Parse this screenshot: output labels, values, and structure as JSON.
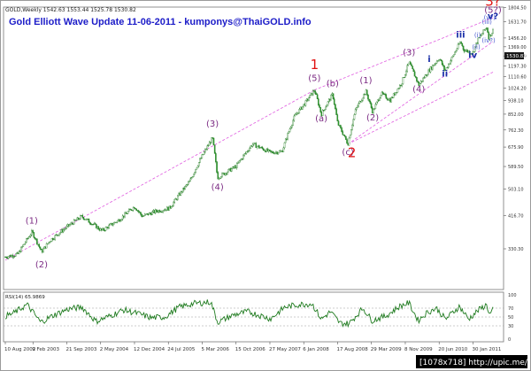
{
  "chart_data": [
    {
      "type": "line",
      "title": "Gold Elliott Wave Update 11-06-2011 - kumponys@ThaiGOLD.info",
      "header": "GOLD,Weekly  1542.63 1553.44 1525.78 1530.82",
      "current_price_label": "1530.82",
      "y_scale": "log",
      "ylim": [
        248,
        1810
      ],
      "y_ticks": [
        "1804.50",
        "1631.70",
        "1456.20",
        "1369.00",
        "1283.40",
        "1197.30",
        "1110.60",
        "1024.20",
        "938.10",
        "852.00",
        "762.30",
        "675.90",
        "589.50",
        "503.10",
        "416.70",
        "330.30",
        "243.90"
      ],
      "x_ticks": [
        "10 Aug 2002",
        "9 Feb 2003",
        "21 Sep 2003",
        "2 May 2004",
        "12 Dec 2004",
        "24 Jul 2005",
        "5 Mar 2006",
        "15 Oct 2006",
        "27 May 2007",
        "6 Jan 2008",
        "17 Aug 2008",
        "29 Mar 2009",
        "8 Nov 2009",
        "20 Jun 2010",
        "30 Jan 2011"
      ],
      "x_start": "2002-08-10",
      "x_end": "2011-06-11",
      "series": [
        {
          "values": [
            [
              "2002-08-10",
              312
            ],
            [
              "2002-11-01",
              318
            ],
            [
              "2003-02-03",
              372
            ],
            [
              "2003-04-07",
              323
            ],
            [
              "2003-06-01",
              350
            ],
            [
              "2003-09-21",
              385
            ],
            [
              "2003-12-29",
              415
            ],
            [
              "2004-05-10",
              375
            ],
            [
              "2004-09-01",
              405
            ],
            [
              "2004-12-12",
              445
            ],
            [
              "2005-02-01",
              415
            ],
            [
              "2005-05-01",
              430
            ],
            [
              "2005-08-01",
              440
            ],
            [
              "2005-12-12",
              530
            ],
            [
              "2006-05-12",
              720
            ],
            [
              "2006-06-14",
              545
            ],
            [
              "2006-10-15",
              590
            ],
            [
              "2007-02-01",
              690
            ],
            [
              "2007-06-01",
              650
            ],
            [
              "2007-08-15",
              655
            ],
            [
              "2007-11-07",
              840
            ],
            [
              "2008-01-15",
              920
            ],
            [
              "2008-03-17",
              1010
            ],
            [
              "2008-05-01",
              850
            ],
            [
              "2008-07-15",
              980
            ],
            [
              "2008-08-17",
              800
            ],
            [
              "2008-10-24",
              690
            ],
            [
              "2008-12-15",
              880
            ],
            [
              "2009-02-20",
              1000
            ],
            [
              "2009-04-06",
              865
            ],
            [
              "2009-06-01",
              985
            ],
            [
              "2009-08-01",
              940
            ],
            [
              "2009-10-15",
              1060
            ],
            [
              "2009-12-03",
              1225
            ],
            [
              "2010-02-05",
              1045
            ],
            [
              "2010-04-15",
              1160
            ],
            [
              "2010-06-21",
              1265
            ],
            [
              "2010-07-28",
              1155
            ],
            [
              "2010-09-15",
              1270
            ],
            [
              "2010-11-09",
              1420
            ],
            [
              "2010-11-29",
              1340
            ],
            [
              "2011-01-28",
              1310
            ],
            [
              "2011-03-01",
              1430
            ],
            [
              "2011-05-02",
              1577
            ],
            [
              "2011-05-13",
              1460
            ],
            [
              "2011-06-11",
              1531
            ]
          ]
        }
      ],
      "wave_labels": [
        {
          "text": "(1)",
          "date": "2003-02-01",
          "price": 395,
          "color": "purple"
        },
        {
          "text": "(2)",
          "date": "2003-04-07",
          "price": 290,
          "color": "purple"
        },
        {
          "text": "(3)",
          "date": "2006-05-12",
          "price": 780,
          "color": "purple"
        },
        {
          "text": "(4)",
          "date": "2006-06-14",
          "price": 500,
          "color": "purple"
        },
        {
          "text": "(5)",
          "date": "2008-03-17",
          "price": 1075,
          "color": "purple"
        },
        {
          "text": "1",
          "date": "2008-03-17",
          "price": 1170,
          "color": "red"
        },
        {
          "text": "(a)",
          "date": "2008-05-01",
          "price": 810,
          "color": "purple"
        },
        {
          "text": "(b)",
          "date": "2008-07-15",
          "price": 1035,
          "color": "purple"
        },
        {
          "text": "(c)",
          "date": "2008-10-24",
          "price": 640,
          "color": "purple"
        },
        {
          "text": "2",
          "date": "2008-11-20",
          "price": 630,
          "color": "red"
        },
        {
          "text": "(1)",
          "date": "2009-02-20",
          "price": 1060,
          "color": "purple"
        },
        {
          "text": "(2)",
          "date": "2009-04-06",
          "price": 815,
          "color": "purple"
        },
        {
          "text": "(3)",
          "date": "2009-12-03",
          "price": 1290,
          "color": "purple"
        },
        {
          "text": "(4)",
          "date": "2010-02-05",
          "price": 995,
          "color": "purple"
        },
        {
          "text": "i",
          "date": "2010-04-15",
          "price": 1230,
          "color": "blue"
        },
        {
          "text": "ii",
          "date": "2010-07-28",
          "price": 1110,
          "color": "blue"
        },
        {
          "text": "iii",
          "date": "2010-11-09",
          "price": 1460,
          "color": "blue"
        },
        {
          "text": "iv",
          "date": "2011-01-28",
          "price": 1265,
          "color": "blue"
        },
        {
          "text": "(i)",
          "date": "2011-03-01",
          "price": 1465,
          "color": "blue-small"
        },
        {
          "text": "(ii)",
          "date": "2011-02-20",
          "price": 1345,
          "color": "blue-small"
        },
        {
          "text": "(iii)",
          "date": "2011-05-02",
          "price": 1610,
          "color": "blue-small"
        },
        {
          "text": "(iv?)",
          "date": "2011-05-13",
          "price": 1410,
          "color": "blue-small"
        },
        {
          "text": "(v?)",
          "date": "2011-05-20",
          "price": 1660,
          "color": "blue-small"
        },
        {
          "text": "v?",
          "date": "2011-06-11",
          "price": 1665,
          "color": "blue"
        },
        {
          "text": "(5?)",
          "date": "2011-06-11",
          "price": 1740,
          "color": "purple"
        },
        {
          "text": "3?",
          "date": "2011-06-11",
          "price": 1830,
          "color": "red"
        }
      ],
      "channels": [
        {
          "start": [
            "2008-03-17",
            1010
          ],
          "end": [
            "2011-06-11",
            1680
          ]
        },
        {
          "start": [
            "2008-10-24",
            690
          ],
          "end": [
            "2011-06-11",
            1145
          ]
        },
        {
          "start": [
            "2008-10-24",
            690
          ],
          "end": [
            "2011-06-11",
            1420
          ]
        },
        {
          "start": [
            "2002-08-10",
            305
          ],
          "end": [
            "2008-03-17",
            1010
          ]
        }
      ]
    },
    {
      "type": "line",
      "title": "RSI(14) 65.9869",
      "y_ticks": [
        "100",
        "70",
        "50",
        "30",
        "0"
      ],
      "levels": [
        70,
        50,
        30
      ],
      "series": [
        {
          "values": [
            [
              "2002-08-10",
              52
            ],
            [
              "2002-10-01",
              58
            ],
            [
              "2003-01-01",
              78
            ],
            [
              "2003-04-01",
              38
            ],
            [
              "2003-07-01",
              55
            ],
            [
              "2003-10-01",
              68
            ],
            [
              "2004-01-01",
              72
            ],
            [
              "2004-04-01",
              40
            ],
            [
              "2004-07-01",
              52
            ],
            [
              "2004-10-01",
              66
            ],
            [
              "2005-01-01",
              58
            ],
            [
              "2005-04-01",
              48
            ],
            [
              "2005-07-01",
              50
            ],
            [
              "2005-10-01",
              72
            ],
            [
              "2006-01-01",
              80
            ],
            [
              "2006-05-01",
              84
            ],
            [
              "2006-06-15",
              38
            ],
            [
              "2006-10-01",
              55
            ],
            [
              "2007-01-01",
              62
            ],
            [
              "2007-06-01",
              46
            ],
            [
              "2007-09-01",
              72
            ],
            [
              "2007-12-01",
              78
            ],
            [
              "2008-03-01",
              80
            ],
            [
              "2008-05-01",
              45
            ],
            [
              "2008-07-01",
              62
            ],
            [
              "2008-09-01",
              36
            ],
            [
              "2008-11-01",
              35
            ],
            [
              "2009-02-01",
              70
            ],
            [
              "2009-04-01",
              42
            ],
            [
              "2009-07-01",
              52
            ],
            [
              "2009-10-01",
              74
            ],
            [
              "2009-12-01",
              82
            ],
            [
              "2010-02-01",
              42
            ],
            [
              "2010-04-01",
              60
            ],
            [
              "2010-06-01",
              70
            ],
            [
              "2010-08-01",
              45
            ],
            [
              "2010-11-01",
              74
            ],
            [
              "2011-01-01",
              45
            ],
            [
              "2011-03-01",
              64
            ],
            [
              "2011-05-01",
              78
            ],
            [
              "2011-05-20",
              55
            ],
            [
              "2011-06-11",
              66
            ]
          ]
        }
      ]
    }
  ],
  "watermark": "[1078x718] http://upic.me/"
}
